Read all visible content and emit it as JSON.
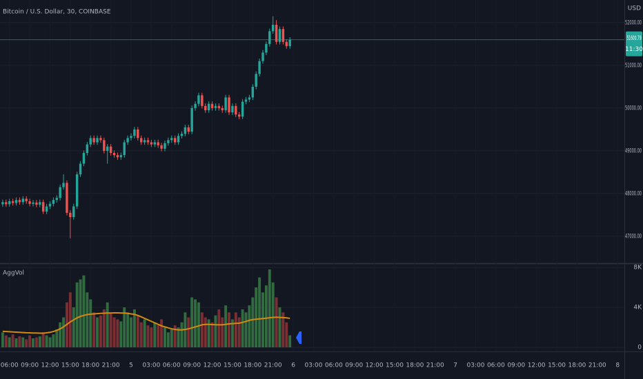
{
  "chart_data": [
    {
      "type": "candlestick",
      "title": "Bitcoin / U.S. Dollar, 30, COINBASE",
      "unit": "USD",
      "x": [
        5,
        5.5,
        6,
        6.5,
        7,
        7.5,
        8,
        8.5,
        9,
        9.5,
        10,
        10.5,
        11,
        11.5,
        12,
        12.5,
        13,
        13.5,
        14,
        14.5,
        15,
        15.5,
        16,
        16.5,
        17,
        17.5,
        18,
        18.5,
        19,
        19.5,
        20,
        20.5,
        21,
        21.5,
        22,
        22.5,
        23,
        23.5,
        24,
        24.5,
        25,
        25.5,
        26,
        26.5,
        27,
        27.5,
        28,
        28.5,
        29,
        29.5,
        30,
        30.5,
        31,
        31.5,
        32,
        32.5,
        33,
        33.5,
        34,
        34.5,
        35,
        35.5,
        36,
        36.5,
        37,
        37.5,
        38,
        38.5,
        39,
        39.5,
        40,
        40.5,
        41,
        41.5,
        42,
        42.5,
        43,
        43.5,
        44,
        44.5,
        45,
        45.5,
        46,
        46.5,
        47,
        47.5
      ],
      "open": [
        47750,
        47800,
        47750,
        47820,
        47780,
        47850,
        47800,
        47880,
        47820,
        47760,
        47790,
        47740,
        47800,
        47580,
        47700,
        47760,
        47850,
        47900,
        48150,
        48250,
        47550,
        47450,
        47700,
        48450,
        48700,
        48950,
        49150,
        49300,
        49200,
        49300,
        49250,
        49000,
        49100,
        48950,
        48900,
        48850,
        48900,
        49200,
        49300,
        49350,
        49500,
        49300,
        49200,
        49250,
        49200,
        49150,
        49200,
        49130,
        49050,
        49180,
        49250,
        49300,
        49200,
        49350,
        49400,
        49550,
        49450,
        50000,
        50100,
        50300,
        50050,
        49950,
        50100,
        50000,
        50050,
        50000,
        49950,
        50250,
        49900,
        50050,
        49850,
        49800,
        50150,
        50200,
        50250,
        50500,
        50800,
        51100,
        51300,
        51500,
        51800,
        51950,
        51550,
        51850,
        51550,
        51450
      ],
      "high": [
        47860,
        47860,
        47880,
        47880,
        47910,
        47910,
        47940,
        47940,
        47880,
        47850,
        47850,
        47860,
        47860,
        47760,
        47820,
        47910,
        47960,
        48210,
        48450,
        48310,
        47610,
        47760,
        48510,
        48760,
        49010,
        49210,
        49360,
        49360,
        49360,
        49360,
        49310,
        49160,
        49160,
        49010,
        48960,
        48960,
        49260,
        49360,
        49410,
        49560,
        49560,
        49360,
        49310,
        49310,
        49260,
        49260,
        49260,
        49190,
        49240,
        49310,
        49360,
        49360,
        49410,
        49460,
        49610,
        49610,
        50060,
        50160,
        50360,
        50360,
        50110,
        50160,
        50160,
        50110,
        50110,
        50060,
        50310,
        50310,
        50110,
        50110,
        49910,
        50210,
        50260,
        50310,
        50560,
        50860,
        51160,
        51360,
        51560,
        51860,
        52150,
        52060,
        51910,
        51910,
        51610,
        51660
      ],
      "low": [
        47690,
        47690,
        47690,
        47720,
        47720,
        47740,
        47740,
        47760,
        47700,
        47700,
        47680,
        47680,
        47520,
        47520,
        47640,
        47700,
        47790,
        47840,
        48090,
        47490,
        46950,
        47390,
        47640,
        48390,
        48640,
        48890,
        49090,
        49140,
        49140,
        49190,
        48940,
        48700,
        48890,
        48840,
        48790,
        48790,
        48840,
        49140,
        49240,
        49290,
        49240,
        49140,
        49140,
        49140,
        49090,
        49090,
        49070,
        48990,
        48990,
        49120,
        49190,
        49140,
        49140,
        49290,
        49340,
        49390,
        49390,
        49940,
        50040,
        49990,
        49890,
        49890,
        49940,
        49940,
        49940,
        49890,
        49890,
        49840,
        49840,
        49790,
        49740,
        49740,
        50090,
        50140,
        50190,
        50440,
        50740,
        51040,
        51240,
        51440,
        51740,
        51490,
        51490,
        51490,
        51390,
        51390
      ],
      "close": [
        47800,
        47750,
        47820,
        47780,
        47850,
        47800,
        47880,
        47820,
        47760,
        47790,
        47740,
        47800,
        47580,
        47700,
        47760,
        47850,
        47900,
        48150,
        48250,
        47550,
        47450,
        47700,
        48450,
        48700,
        48950,
        49150,
        49300,
        49200,
        49300,
        49250,
        49000,
        49100,
        48950,
        48900,
        48850,
        48900,
        49200,
        49300,
        49350,
        49500,
        49300,
        49200,
        49250,
        49200,
        49150,
        49200,
        49130,
        49050,
        49180,
        49250,
        49300,
        49200,
        49350,
        49400,
        49550,
        49450,
        50000,
        50100,
        50300,
        50050,
        49950,
        50100,
        50000,
        50050,
        50000,
        49950,
        50250,
        49900,
        50050,
        49850,
        49800,
        50150,
        50200,
        50250,
        50500,
        50800,
        51100,
        51300,
        51500,
        51800,
        51950,
        51550,
        51850,
        51550,
        51450,
        51600
      ],
      "up_color": "#26a69a",
      "down_color": "#ef5350",
      "xlim": [
        4.6,
        97.0
      ],
      "ylim": [
        46370,
        52530
      ],
      "yticks": [
        {
          "value": 47000,
          "label": "47000.00"
        },
        {
          "value": 48000,
          "label": "48000.00"
        },
        {
          "value": 49000,
          "label": "49000.00"
        },
        {
          "value": 50000,
          "label": "50000.00"
        },
        {
          "value": 51000,
          "label": "51000.00"
        },
        {
          "value": 52000,
          "label": "52000.00"
        }
      ],
      "grid": true,
      "last_price": {
        "value": 51600.79,
        "label": "51600.79"
      },
      "countdown": "11:30"
    },
    {
      "type": "bar",
      "title": "AggVol",
      "x": [
        5,
        5.5,
        6,
        6.5,
        7,
        7.5,
        8,
        8.5,
        9,
        9.5,
        10,
        10.5,
        11,
        11.5,
        12,
        12.5,
        13,
        13.5,
        14,
        14.5,
        15,
        15.5,
        16,
        16.5,
        17,
        17.5,
        18,
        18.5,
        19,
        19.5,
        20,
        20.5,
        21,
        21.5,
        22,
        22.5,
        23,
        23.5,
        24,
        24.5,
        25,
        25.5,
        26,
        26.5,
        27,
        27.5,
        28,
        28.5,
        29,
        29.5,
        30,
        30.5,
        31,
        31.5,
        32,
        32.5,
        33,
        33.5,
        34,
        34.5,
        35,
        35.5,
        36,
        36.5,
        37,
        37.5,
        38,
        38.5,
        39,
        39.5,
        40,
        40.5,
        41,
        41.5,
        42,
        42.5,
        43,
        43.5,
        44,
        44.5,
        45,
        45.5,
        46,
        46.5,
        47,
        47.5
      ],
      "values": [
        1500,
        1200,
        1000,
        1300,
        900,
        1100,
        1000,
        800,
        1200,
        900,
        1000,
        1100,
        1500,
        1200,
        1000,
        1300,
        1800,
        2500,
        3000,
        4500,
        5500,
        4000,
        6500,
        6800,
        7200,
        5500,
        4800,
        3500,
        3000,
        3200,
        3800,
        4500,
        3500,
        3000,
        2800,
        2600,
        4000,
        3500,
        3000,
        3800,
        3200,
        2500,
        2800,
        2200,
        2000,
        2500,
        2200,
        2800,
        2000,
        1500,
        1800,
        2200,
        2000,
        2500,
        3500,
        3000,
        5000,
        4800,
        4500,
        3500,
        3000,
        2800,
        2500,
        3200,
        3800,
        3000,
        4200,
        3500,
        2800,
        3500,
        3000,
        3800,
        3500,
        4200,
        5000,
        6000,
        7000,
        5500,
        6200,
        7800,
        6500,
        5000,
        4000,
        3500,
        2500,
        1200
      ],
      "up_color": "#336b41",
      "down_color": "#7c2f33",
      "line_values": [
        1600,
        1580,
        1560,
        1540,
        1520,
        1500,
        1480,
        1460,
        1450,
        1440,
        1430,
        1420,
        1420,
        1450,
        1500,
        1580,
        1700,
        1850,
        2050,
        2300,
        2550,
        2750,
        2950,
        3100,
        3200,
        3280,
        3320,
        3350,
        3380,
        3400,
        3420,
        3430,
        3440,
        3450,
        3450,
        3440,
        3430,
        3400,
        3350,
        3300,
        3200,
        3050,
        2900,
        2750,
        2600,
        2450,
        2300,
        2150,
        2050,
        1950,
        1850,
        1800,
        1750,
        1750,
        1800,
        1850,
        1950,
        2050,
        2150,
        2250,
        2300,
        2300,
        2280,
        2260,
        2250,
        2250,
        2300,
        2350,
        2380,
        2400,
        2420,
        2500,
        2600,
        2700,
        2780,
        2820,
        2850,
        2880,
        2920,
        2960,
        3000,
        3020,
        3000,
        2980,
        2950,
        2900
      ],
      "line_color": "#d68910",
      "xlim": [
        4.6,
        97.0
      ],
      "xticks": [
        {
          "value": 6,
          "label": "06:00"
        },
        {
          "value": 9,
          "label": "09:00"
        },
        {
          "value": 12,
          "label": "12:00"
        },
        {
          "value": 15,
          "label": "15:00"
        },
        {
          "value": 18,
          "label": "18:00"
        },
        {
          "value": 21,
          "label": "21:00"
        },
        {
          "value": 24,
          "label": "5"
        },
        {
          "value": 27,
          "label": "03:00"
        },
        {
          "value": 30,
          "label": "06:00"
        },
        {
          "value": 33,
          "label": "09:00"
        },
        {
          "value": 36,
          "label": "12:00"
        },
        {
          "value": 39,
          "label": "15:00"
        },
        {
          "value": 42,
          "label": "18:00"
        },
        {
          "value": 45,
          "label": "21:00"
        },
        {
          "value": 48,
          "label": "6"
        },
        {
          "value": 51,
          "label": "03:00"
        },
        {
          "value": 54,
          "label": "06:00"
        },
        {
          "value": 57,
          "label": "09:00"
        },
        {
          "value": 60,
          "label": "12:00"
        },
        {
          "value": 63,
          "label": "15:00"
        },
        {
          "value": 66,
          "label": "18:00"
        },
        {
          "value": 69,
          "label": "21:00"
        },
        {
          "value": 72,
          "label": "7"
        },
        {
          "value": 75,
          "label": "03:00"
        },
        {
          "value": 78,
          "label": "06:00"
        },
        {
          "value": 81,
          "label": "09:00"
        },
        {
          "value": 84,
          "label": "12:00"
        },
        {
          "value": 87,
          "label": "15:00"
        },
        {
          "value": 90,
          "label": "18:00"
        },
        {
          "value": 93,
          "label": "21:00"
        },
        {
          "value": 96,
          "label": "8"
        }
      ],
      "ylim": [
        -410,
        8350
      ],
      "yticks": [
        0,
        {
          "value": 4000,
          "label": "4K"
        },
        {
          "value": 8000,
          "label": "8K"
        }
      ],
      "grid": true
    }
  ]
}
